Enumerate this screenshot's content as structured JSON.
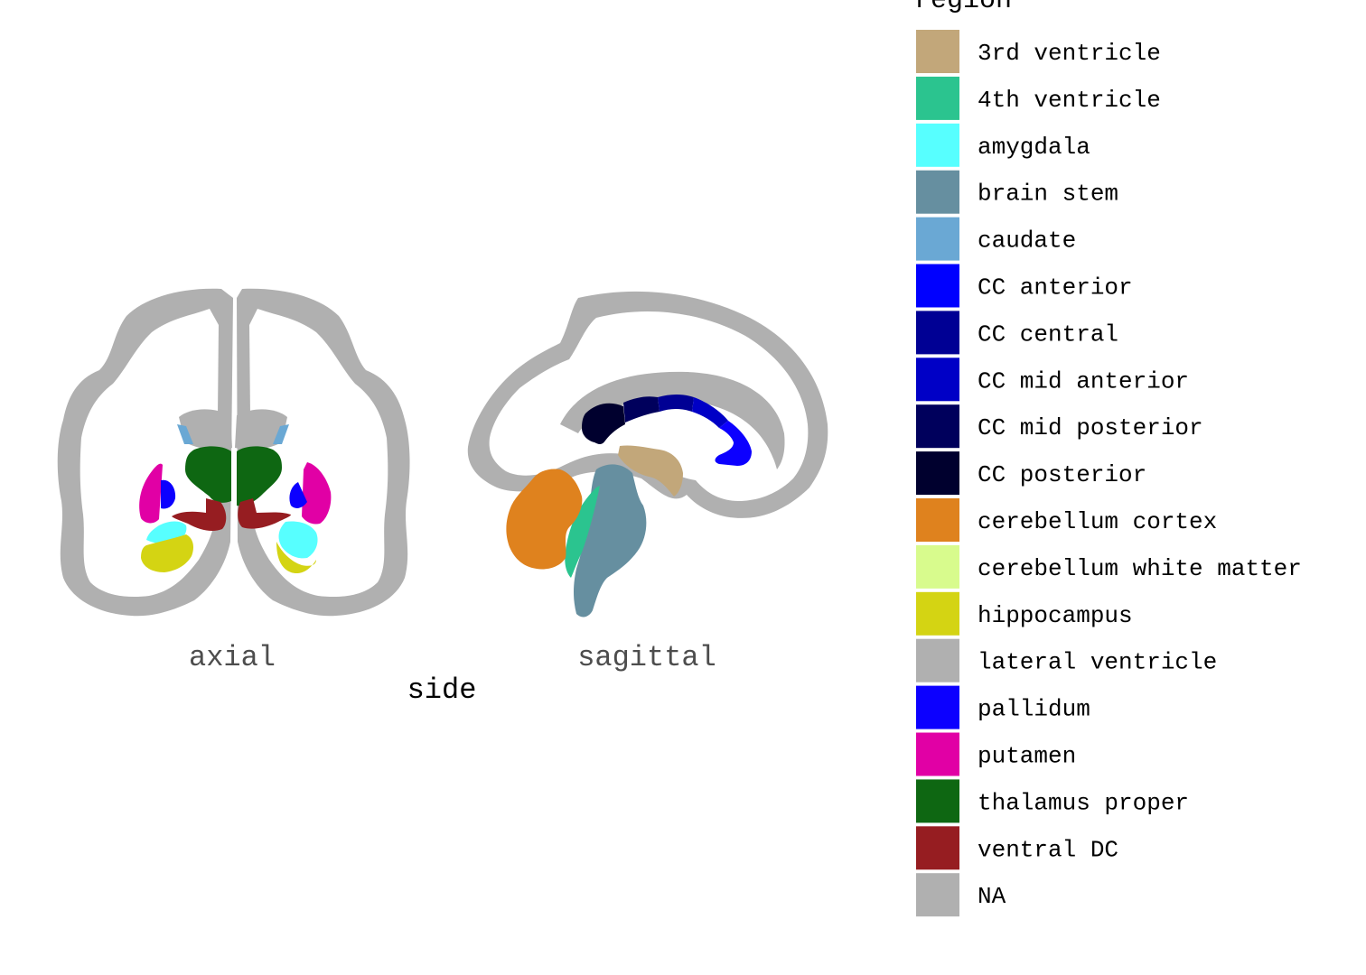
{
  "colors": {
    "third_ventricle": "#C2A77A",
    "fourth_ventricle": "#2BC48F",
    "amygdala": "#57FFFF",
    "brain_stem": "#668FA0",
    "caudate": "#6AA8D4",
    "cc_anterior": "#0000FF",
    "cc_central": "#000094",
    "cc_mid_anterior": "#0000C6",
    "cc_mid_posterior": "#00005C",
    "cc_posterior": "#00002E",
    "cerebellum_cortex": "#DF821E",
    "cerebellum_white_matter": "#D8FB8D",
    "hippocampus": "#D4D413",
    "lateral_ventricle": "#B0B0B0",
    "pallidum": "#0C00FF",
    "putamen": "#E100A5",
    "thalamus_proper": "#0E6712",
    "ventral_dc": "#961D21",
    "na": "#B0B0B0"
  },
  "views": [
    "axial",
    "sagittal"
  ],
  "axis_title": "side",
  "legend": {
    "title": "region",
    "items": [
      {
        "label": "3rd ventricle",
        "color": "#C2A77A"
      },
      {
        "label": "4th ventricle",
        "color": "#2BC48F"
      },
      {
        "label": "amygdala",
        "color": "#57FFFF"
      },
      {
        "label": "brain stem",
        "color": "#668FA0"
      },
      {
        "label": "caudate",
        "color": "#6AA8D4"
      },
      {
        "label": "CC anterior",
        "color": "#0000FF"
      },
      {
        "label": "CC central",
        "color": "#000094"
      },
      {
        "label": "CC mid anterior",
        "color": "#0000C6"
      },
      {
        "label": "CC mid posterior",
        "color": "#00005C"
      },
      {
        "label": "CC posterior",
        "color": "#00002E"
      },
      {
        "label": "cerebellum cortex",
        "color": "#DF821E"
      },
      {
        "label": "cerebellum white matter",
        "color": "#D8FB8D"
      },
      {
        "label": "hippocampus",
        "color": "#D4D413"
      },
      {
        "label": "lateral ventricle",
        "color": "#B0B0B0"
      },
      {
        "label": "pallidum",
        "color": "#0C00FF"
      },
      {
        "label": "putamen",
        "color": "#E100A5"
      },
      {
        "label": "thalamus proper",
        "color": "#0E6712"
      },
      {
        "label": "ventral DC",
        "color": "#961D21"
      },
      {
        "label": "NA",
        "color": "#B0B0B0"
      }
    ]
  }
}
